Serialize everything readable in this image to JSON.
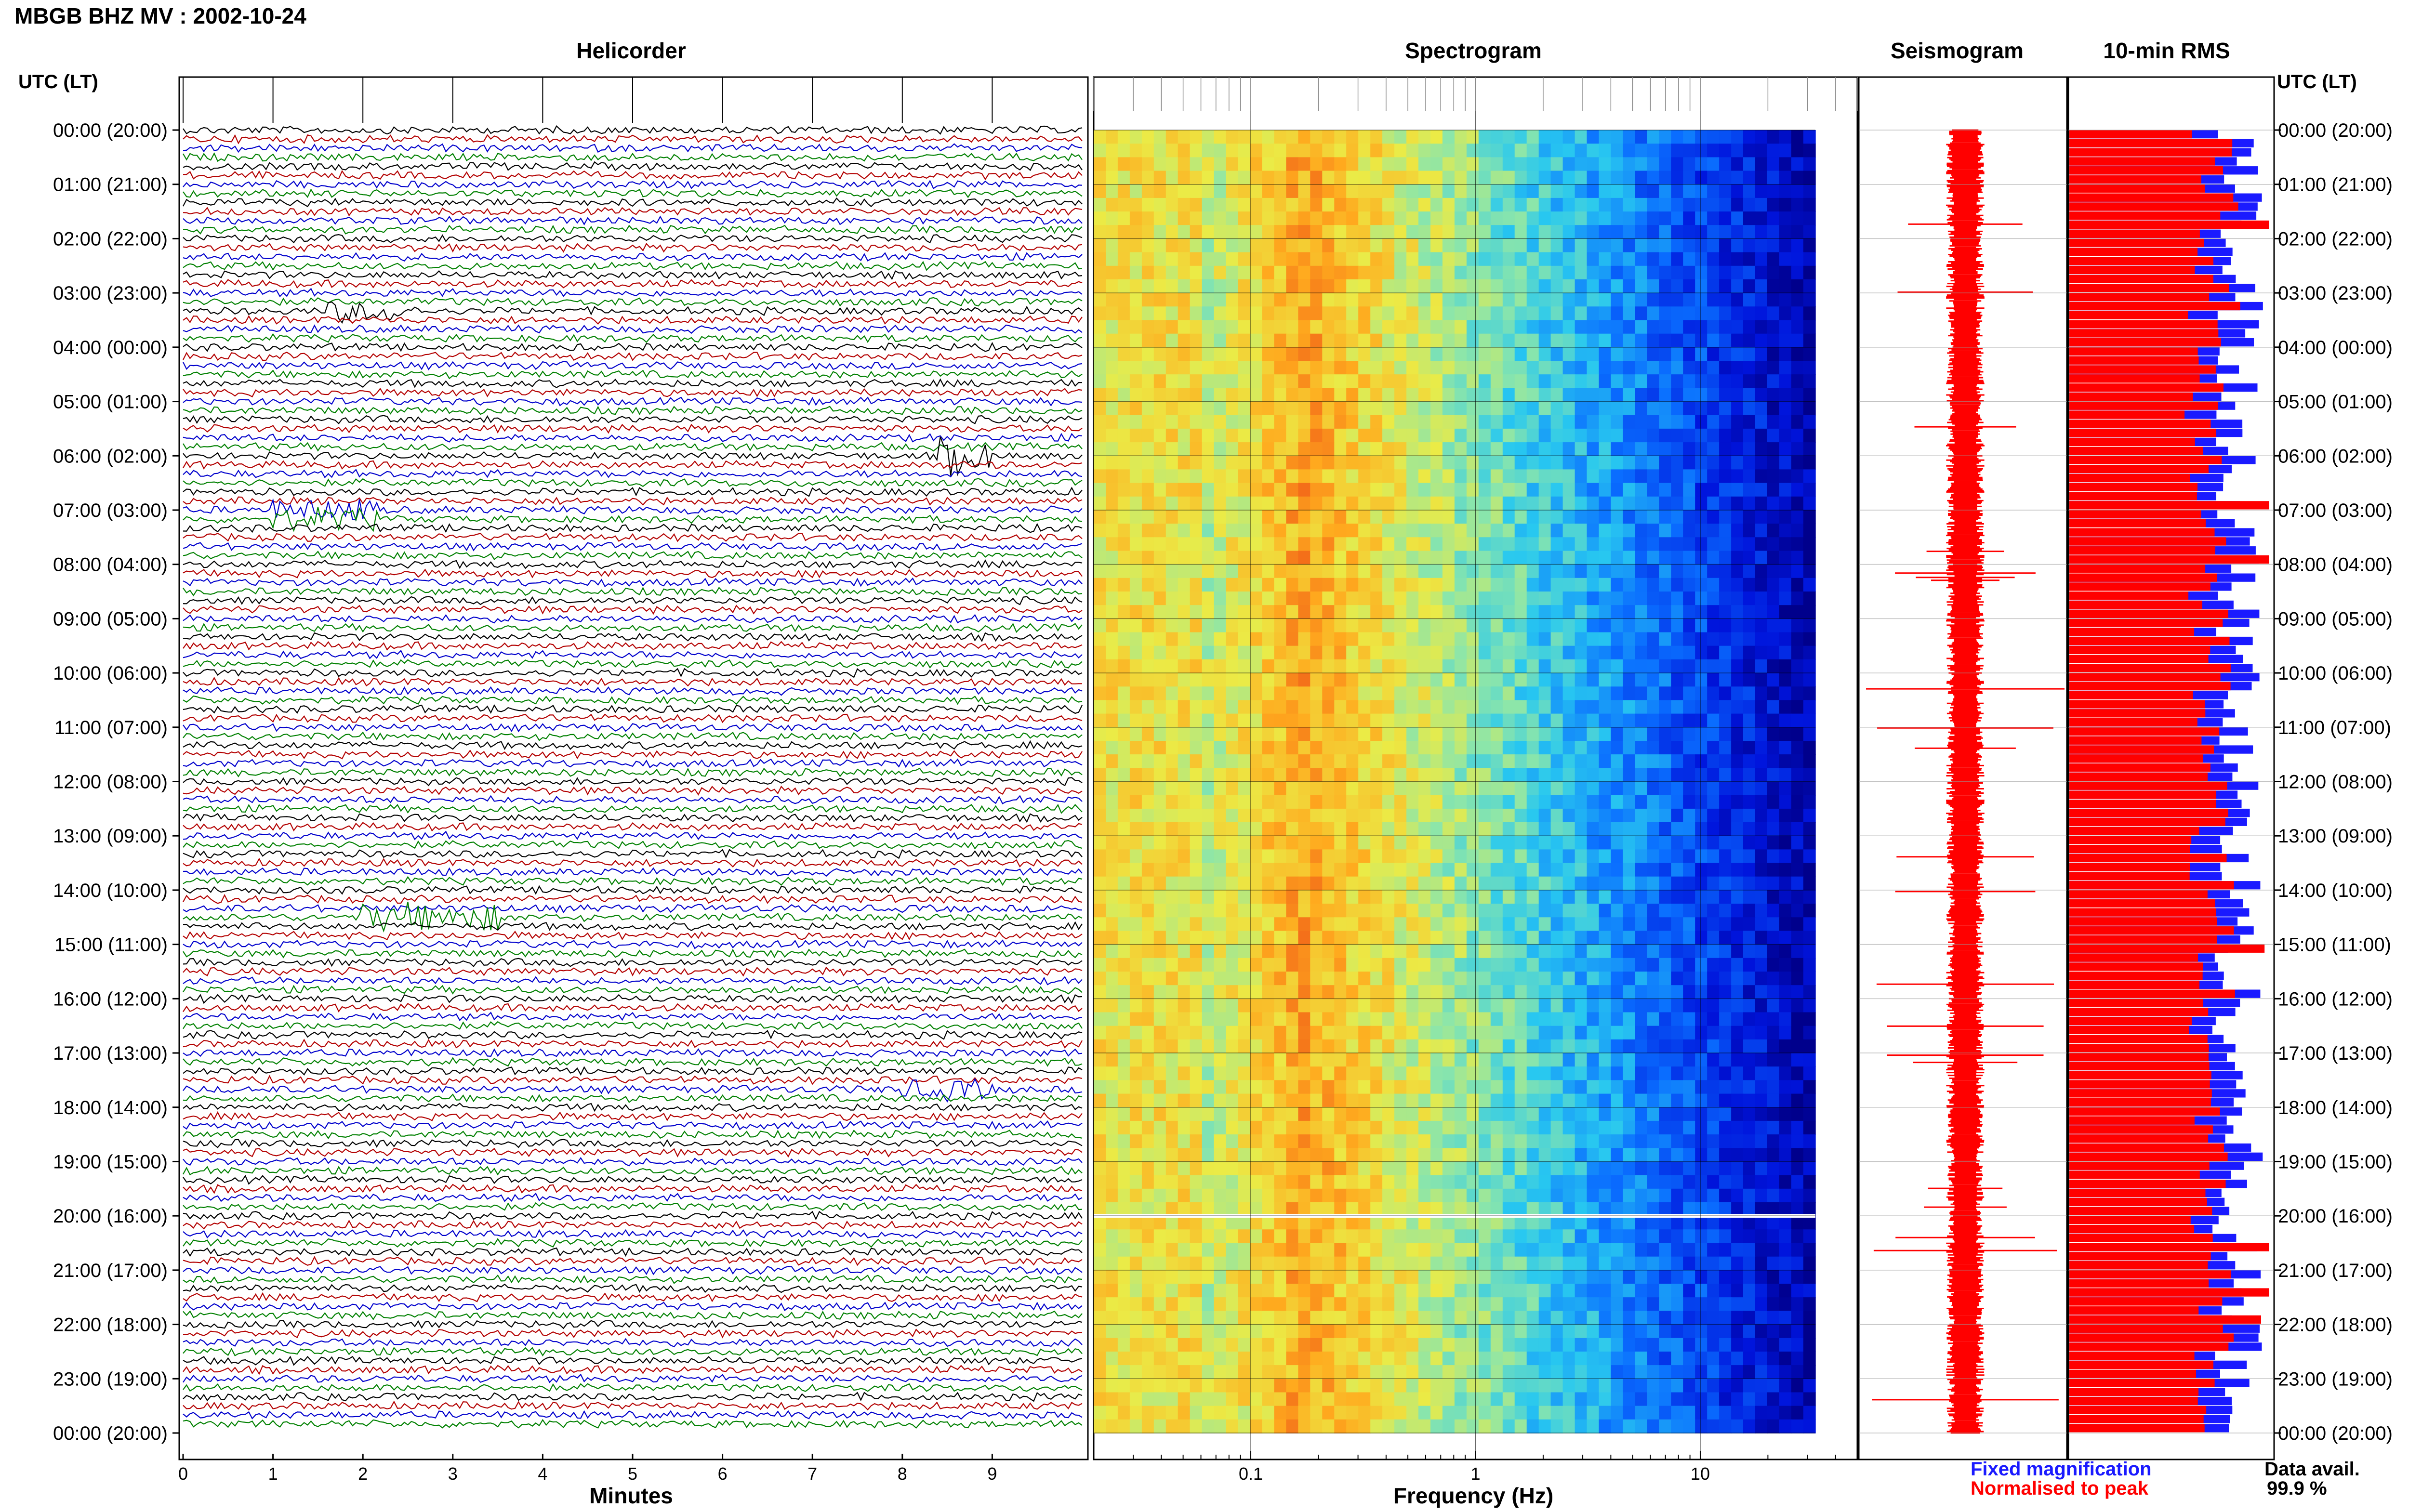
{
  "header": {
    "title": "MBGB BHZ MV : 2002-10-24",
    "utc_label_left": "UTC (LT)",
    "utc_label_right": "UTC (LT)"
  },
  "panels": {
    "helicorder": "Helicorder",
    "spectrogram": "Spectrogram",
    "seismogram": "Seismogram",
    "rms": "10-min RMS"
  },
  "axes": {
    "minutes_label": "Minutes",
    "frequency_label": "Frequency (Hz)",
    "minute_ticks": [
      "0",
      "1",
      "2",
      "3",
      "4",
      "5",
      "6",
      "7",
      "8",
      "9"
    ],
    "frequency_ticks": [
      "0.1",
      "1",
      "10"
    ]
  },
  "time_labels": [
    "00:00 (20:00)",
    "01:00 (21:00)",
    "02:00 (22:00)",
    "03:00 (23:00)",
    "04:00 (00:00)",
    "05:00 (01:00)",
    "06:00 (02:00)",
    "07:00 (03:00)",
    "08:00 (04:00)",
    "09:00 (05:00)",
    "10:00 (06:00)",
    "11:00 (07:00)",
    "12:00 (08:00)",
    "13:00 (09:00)",
    "14:00 (10:00)",
    "15:00 (11:00)",
    "16:00 (12:00)",
    "17:00 (13:00)",
    "18:00 (14:00)",
    "19:00 (15:00)",
    "20:00 (16:00)",
    "21:00 (17:00)",
    "22:00 (18:00)",
    "23:00 (19:00)",
    "00:00 (20:00)"
  ],
  "legend": {
    "fixed": "Fixed magnification",
    "normalised": "Normalised to peak",
    "data_avail_label": "Data avail.",
    "data_avail_value": "99.9 %"
  },
  "colors": {
    "helicorder_traces": [
      "#000000",
      "#b30000",
      "#0000cc",
      "#008000"
    ],
    "fixed_magnification": "#1a1aff",
    "normalised_to_peak": "#ff0000",
    "seismogram": "#ff0000"
  },
  "chart_data": [
    {
      "type": "line",
      "name": "helicorder",
      "title": "Helicorder",
      "xlabel": "Minutes",
      "xlim": [
        0,
        10
      ],
      "traces": 144,
      "minutes_per_trace": 10,
      "events": [
        {
          "hour": 3.3,
          "minute_start": 1.6,
          "minute_end": 2.6,
          "amplitude": 3
        },
        {
          "hour": 6.0,
          "minute_start": 8.4,
          "minute_end": 9.0,
          "amplitude": 5
        },
        {
          "hour": 7.1,
          "minute_start": 1.0,
          "minute_end": 2.2,
          "amplitude": 3
        },
        {
          "hour": 14.5,
          "minute_start": 2.0,
          "minute_end": 3.5,
          "amplitude": 4
        },
        {
          "hour": 17.7,
          "minute_start": 8.0,
          "minute_end": 9.0,
          "amplitude": 3
        }
      ]
    },
    {
      "type": "heatmap",
      "name": "spectrogram",
      "title": "Spectrogram",
      "xlabel": "Frequency (Hz)",
      "xscale": "log",
      "xlim": [
        0.02,
        50
      ],
      "xticks": [
        0.1,
        1,
        10
      ]
    },
    {
      "type": "line",
      "name": "seismogram",
      "title": "Seismogram"
    },
    {
      "type": "bar",
      "name": "rms",
      "title": "10-min RMS",
      "series": [
        {
          "name": "Fixed magnification"
        },
        {
          "name": "Normalised to peak"
        }
      ]
    }
  ]
}
